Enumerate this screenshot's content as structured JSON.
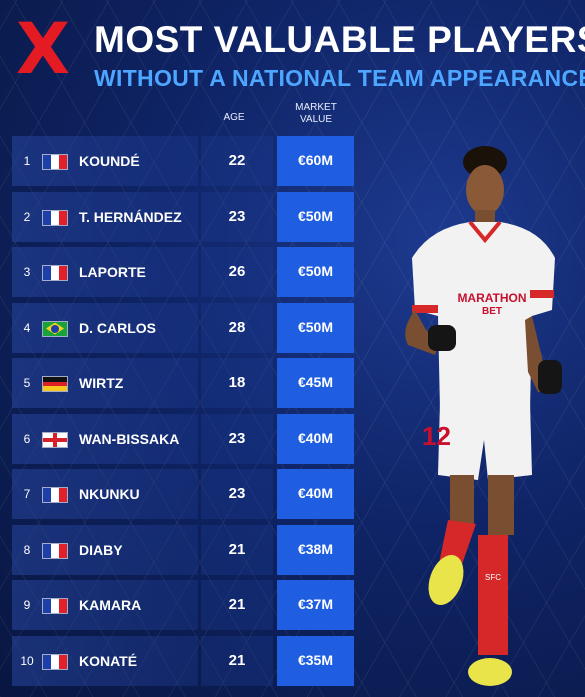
{
  "header": {
    "mark": "X",
    "title": "MOST VALUABLE PLAYERS",
    "subtitle": "WITHOUT A NATIONAL TEAM APPEARANCE",
    "col_age": "AGE",
    "col_value_line1": "MARKET",
    "col_value_line2": "VALUE"
  },
  "colors": {
    "accent_red": "#e41b23",
    "subtitle_blue": "#4da6ff",
    "value_cell": "#1f5ee0"
  },
  "rows": [
    {
      "rank": "1",
      "flag": "france-flag-icon",
      "name": "KOUNDÉ",
      "age": "22",
      "value": "€60M"
    },
    {
      "rank": "2",
      "flag": "france-flag-icon",
      "name": "T. HERNÁNDEZ",
      "age": "23",
      "value": "€50M"
    },
    {
      "rank": "3",
      "flag": "france-flag-icon",
      "name": "LAPORTE",
      "age": "26",
      "value": "€50M"
    },
    {
      "rank": "4",
      "flag": "brazil-flag-icon",
      "name": "D. CARLOS",
      "age": "28",
      "value": "€50M"
    },
    {
      "rank": "5",
      "flag": "germany-flag-icon",
      "name": "WIRTZ",
      "age": "18",
      "value": "€45M"
    },
    {
      "rank": "6",
      "flag": "england-flag-icon",
      "name": "WAN-BISSAKA",
      "age": "23",
      "value": "€40M"
    },
    {
      "rank": "7",
      "flag": "france-flag-icon",
      "name": "NKUNKU",
      "age": "23",
      "value": "€40M"
    },
    {
      "rank": "8",
      "flag": "france-flag-icon",
      "name": "DIABY",
      "age": "21",
      "value": "€38M"
    },
    {
      "rank": "9",
      "flag": "france-flag-icon",
      "name": "KAMARA",
      "age": "21",
      "value": "€37M"
    },
    {
      "rank": "10",
      "flag": "france-flag-icon",
      "name": "KONATÉ",
      "age": "21",
      "value": "€35M"
    }
  ],
  "player": {
    "shirt_sponsor": "MARATHON BET",
    "shirt_number": "12",
    "sock_text": "SFC"
  }
}
